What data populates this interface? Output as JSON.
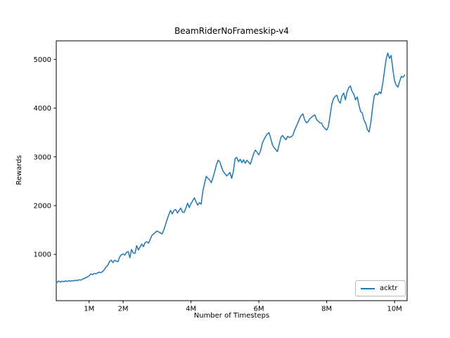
{
  "figure": {
    "title": "BeamRiderNoFrameskip-v4",
    "xlabel": "Number of Timesteps",
    "ylabel": "Rewards"
  },
  "colors": {
    "background": "#ffffff",
    "axis": "#000000",
    "series_acktr": "#1f77b4",
    "legend_border": "#b9b9b9"
  },
  "legend": {
    "entries": [
      {
        "label": "acktr",
        "color": "#1f77b4"
      }
    ],
    "position": "lower right"
  },
  "chart_data": {
    "type": "line",
    "title": "BeamRiderNoFrameskip-v4",
    "xlabel": "Number of Timesteps",
    "ylabel": "Rewards",
    "x_unit": "millions of timesteps",
    "xlim": [
      0.03,
      10.37
    ],
    "ylim": [
      50,
      5380
    ],
    "xticks": [
      {
        "value": 1,
        "label": "1M"
      },
      {
        "value": 2,
        "label": "2M"
      },
      {
        "value": 4,
        "label": "4M"
      },
      {
        "value": 6,
        "label": "6M"
      },
      {
        "value": 8,
        "label": "8M"
      },
      {
        "value": 10,
        "label": "10M"
      }
    ],
    "yticks": [
      {
        "value": 1000,
        "label": "1000"
      },
      {
        "value": 2000,
        "label": "2000"
      },
      {
        "value": 3000,
        "label": "3000"
      },
      {
        "value": 4000,
        "label": "4000"
      },
      {
        "value": 5000,
        "label": "5000"
      }
    ],
    "grid": false,
    "legend_position": "lower right",
    "series": [
      {
        "name": "acktr",
        "color": "#1f77b4",
        "points": [
          [
            0.03,
            395
          ],
          [
            0.05,
            430
          ],
          [
            0.1,
            455
          ],
          [
            0.15,
            430
          ],
          [
            0.2,
            450
          ],
          [
            0.25,
            440
          ],
          [
            0.3,
            455
          ],
          [
            0.35,
            445
          ],
          [
            0.4,
            460
          ],
          [
            0.45,
            450
          ],
          [
            0.5,
            460
          ],
          [
            0.55,
            455
          ],
          [
            0.6,
            470
          ],
          [
            0.65,
            460
          ],
          [
            0.7,
            480
          ],
          [
            0.75,
            470
          ],
          [
            0.8,
            490
          ],
          [
            0.85,
            505
          ],
          [
            0.9,
            520
          ],
          [
            0.95,
            540
          ],
          [
            1.0,
            560
          ],
          [
            1.05,
            600
          ],
          [
            1.1,
            585
          ],
          [
            1.15,
            610
          ],
          [
            1.2,
            600
          ],
          [
            1.25,
            620
          ],
          [
            1.3,
            635
          ],
          [
            1.35,
            625
          ],
          [
            1.4,
            650
          ],
          [
            1.45,
            690
          ],
          [
            1.5,
            740
          ],
          [
            1.55,
            780
          ],
          [
            1.6,
            850
          ],
          [
            1.65,
            880
          ],
          [
            1.7,
            830
          ],
          [
            1.75,
            880
          ],
          [
            1.8,
            860
          ],
          [
            1.85,
            850
          ],
          [
            1.9,
            950
          ],
          [
            1.95,
            990
          ],
          [
            2.0,
            1010
          ],
          [
            2.05,
            985
          ],
          [
            2.1,
            1040
          ],
          [
            2.15,
            1060
          ],
          [
            2.2,
            930
          ],
          [
            2.25,
            1100
          ],
          [
            2.3,
            1030
          ],
          [
            2.35,
            1020
          ],
          [
            2.4,
            1180
          ],
          [
            2.45,
            1090
          ],
          [
            2.5,
            1150
          ],
          [
            2.55,
            1210
          ],
          [
            2.6,
            1160
          ],
          [
            2.65,
            1240
          ],
          [
            2.7,
            1260
          ],
          [
            2.75,
            1230
          ],
          [
            2.8,
            1310
          ],
          [
            2.85,
            1390
          ],
          [
            2.9,
            1420
          ],
          [
            2.95,
            1450
          ],
          [
            3.0,
            1480
          ],
          [
            3.05,
            1460
          ],
          [
            3.1,
            1440
          ],
          [
            3.15,
            1420
          ],
          [
            3.2,
            1500
          ],
          [
            3.25,
            1610
          ],
          [
            3.3,
            1720
          ],
          [
            3.35,
            1820
          ],
          [
            3.4,
            1900
          ],
          [
            3.45,
            1830
          ],
          [
            3.5,
            1900
          ],
          [
            3.55,
            1920
          ],
          [
            3.6,
            1850
          ],
          [
            3.65,
            1900
          ],
          [
            3.7,
            1950
          ],
          [
            3.75,
            1870
          ],
          [
            3.8,
            1860
          ],
          [
            3.85,
            1950
          ],
          [
            3.9,
            2050
          ],
          [
            3.95,
            1960
          ],
          [
            4.0,
            2040
          ],
          [
            4.05,
            2100
          ],
          [
            4.1,
            2160
          ],
          [
            4.15,
            2080
          ],
          [
            4.2,
            2010
          ],
          [
            4.25,
            2060
          ],
          [
            4.3,
            2030
          ],
          [
            4.35,
            2300
          ],
          [
            4.4,
            2450
          ],
          [
            4.45,
            2600
          ],
          [
            4.5,
            2560
          ],
          [
            4.55,
            2530
          ],
          [
            4.6,
            2470
          ],
          [
            4.65,
            2580
          ],
          [
            4.7,
            2700
          ],
          [
            4.75,
            2840
          ],
          [
            4.8,
            2930
          ],
          [
            4.85,
            2900
          ],
          [
            4.9,
            2790
          ],
          [
            4.95,
            2700
          ],
          [
            5.0,
            2660
          ],
          [
            5.05,
            2610
          ],
          [
            5.1,
            2640
          ],
          [
            5.15,
            2680
          ],
          [
            5.2,
            2560
          ],
          [
            5.25,
            2700
          ],
          [
            5.3,
            2960
          ],
          [
            5.35,
            2990
          ],
          [
            5.4,
            2900
          ],
          [
            5.45,
            2950
          ],
          [
            5.5,
            2880
          ],
          [
            5.55,
            2940
          ],
          [
            5.6,
            2870
          ],
          [
            5.65,
            2930
          ],
          [
            5.7,
            2890
          ],
          [
            5.75,
            2850
          ],
          [
            5.8,
            2960
          ],
          [
            5.85,
            3070
          ],
          [
            5.9,
            3140
          ],
          [
            5.95,
            3090
          ],
          [
            6.0,
            3040
          ],
          [
            6.05,
            3120
          ],
          [
            6.1,
            3270
          ],
          [
            6.15,
            3350
          ],
          [
            6.2,
            3420
          ],
          [
            6.25,
            3470
          ],
          [
            6.3,
            3500
          ],
          [
            6.35,
            3380
          ],
          [
            6.4,
            3250
          ],
          [
            6.45,
            3190
          ],
          [
            6.5,
            3150
          ],
          [
            6.55,
            3110
          ],
          [
            6.6,
            3260
          ],
          [
            6.65,
            3400
          ],
          [
            6.7,
            3440
          ],
          [
            6.75,
            3390
          ],
          [
            6.8,
            3350
          ],
          [
            6.85,
            3420
          ],
          [
            6.9,
            3400
          ],
          [
            6.95,
            3410
          ],
          [
            7.0,
            3440
          ],
          [
            7.05,
            3540
          ],
          [
            7.1,
            3620
          ],
          [
            7.15,
            3700
          ],
          [
            7.2,
            3780
          ],
          [
            7.25,
            3850
          ],
          [
            7.3,
            3880
          ],
          [
            7.35,
            3760
          ],
          [
            7.4,
            3700
          ],
          [
            7.45,
            3720
          ],
          [
            7.5,
            3780
          ],
          [
            7.55,
            3810
          ],
          [
            7.6,
            3840
          ],
          [
            7.65,
            3860
          ],
          [
            7.7,
            3770
          ],
          [
            7.75,
            3730
          ],
          [
            7.8,
            3700
          ],
          [
            7.85,
            3690
          ],
          [
            7.9,
            3620
          ],
          [
            7.95,
            3580
          ],
          [
            8.0,
            3550
          ],
          [
            8.05,
            3620
          ],
          [
            8.1,
            3850
          ],
          [
            8.15,
            4080
          ],
          [
            8.2,
            4190
          ],
          [
            8.25,
            4240
          ],
          [
            8.3,
            4265
          ],
          [
            8.35,
            4150
          ],
          [
            8.4,
            4100
          ],
          [
            8.45,
            4250
          ],
          [
            8.5,
            4310
          ],
          [
            8.55,
            4170
          ],
          [
            8.6,
            4330
          ],
          [
            8.65,
            4420
          ],
          [
            8.7,
            4455
          ],
          [
            8.75,
            4340
          ],
          [
            8.8,
            4290
          ],
          [
            8.85,
            4170
          ],
          [
            8.9,
            4230
          ],
          [
            8.95,
            4060
          ],
          [
            9.0,
            3930
          ],
          [
            9.05,
            3900
          ],
          [
            9.1,
            3750
          ],
          [
            9.15,
            3690
          ],
          [
            9.2,
            3560
          ],
          [
            9.25,
            3510
          ],
          [
            9.3,
            3700
          ],
          [
            9.35,
            4000
          ],
          [
            9.4,
            4250
          ],
          [
            9.45,
            4300
          ],
          [
            9.5,
            4270
          ],
          [
            9.55,
            4330
          ],
          [
            9.6,
            4300
          ],
          [
            9.65,
            4500
          ],
          [
            9.7,
            4750
          ],
          [
            9.75,
            5000
          ],
          [
            9.8,
            5130
          ],
          [
            9.85,
            5020
          ],
          [
            9.9,
            5080
          ],
          [
            9.95,
            4800
          ],
          [
            10.0,
            4560
          ],
          [
            10.05,
            4470
          ],
          [
            10.1,
            4430
          ],
          [
            10.15,
            4550
          ],
          [
            10.2,
            4650
          ],
          [
            10.25,
            4630
          ],
          [
            10.3,
            4680
          ]
        ]
      }
    ]
  }
}
